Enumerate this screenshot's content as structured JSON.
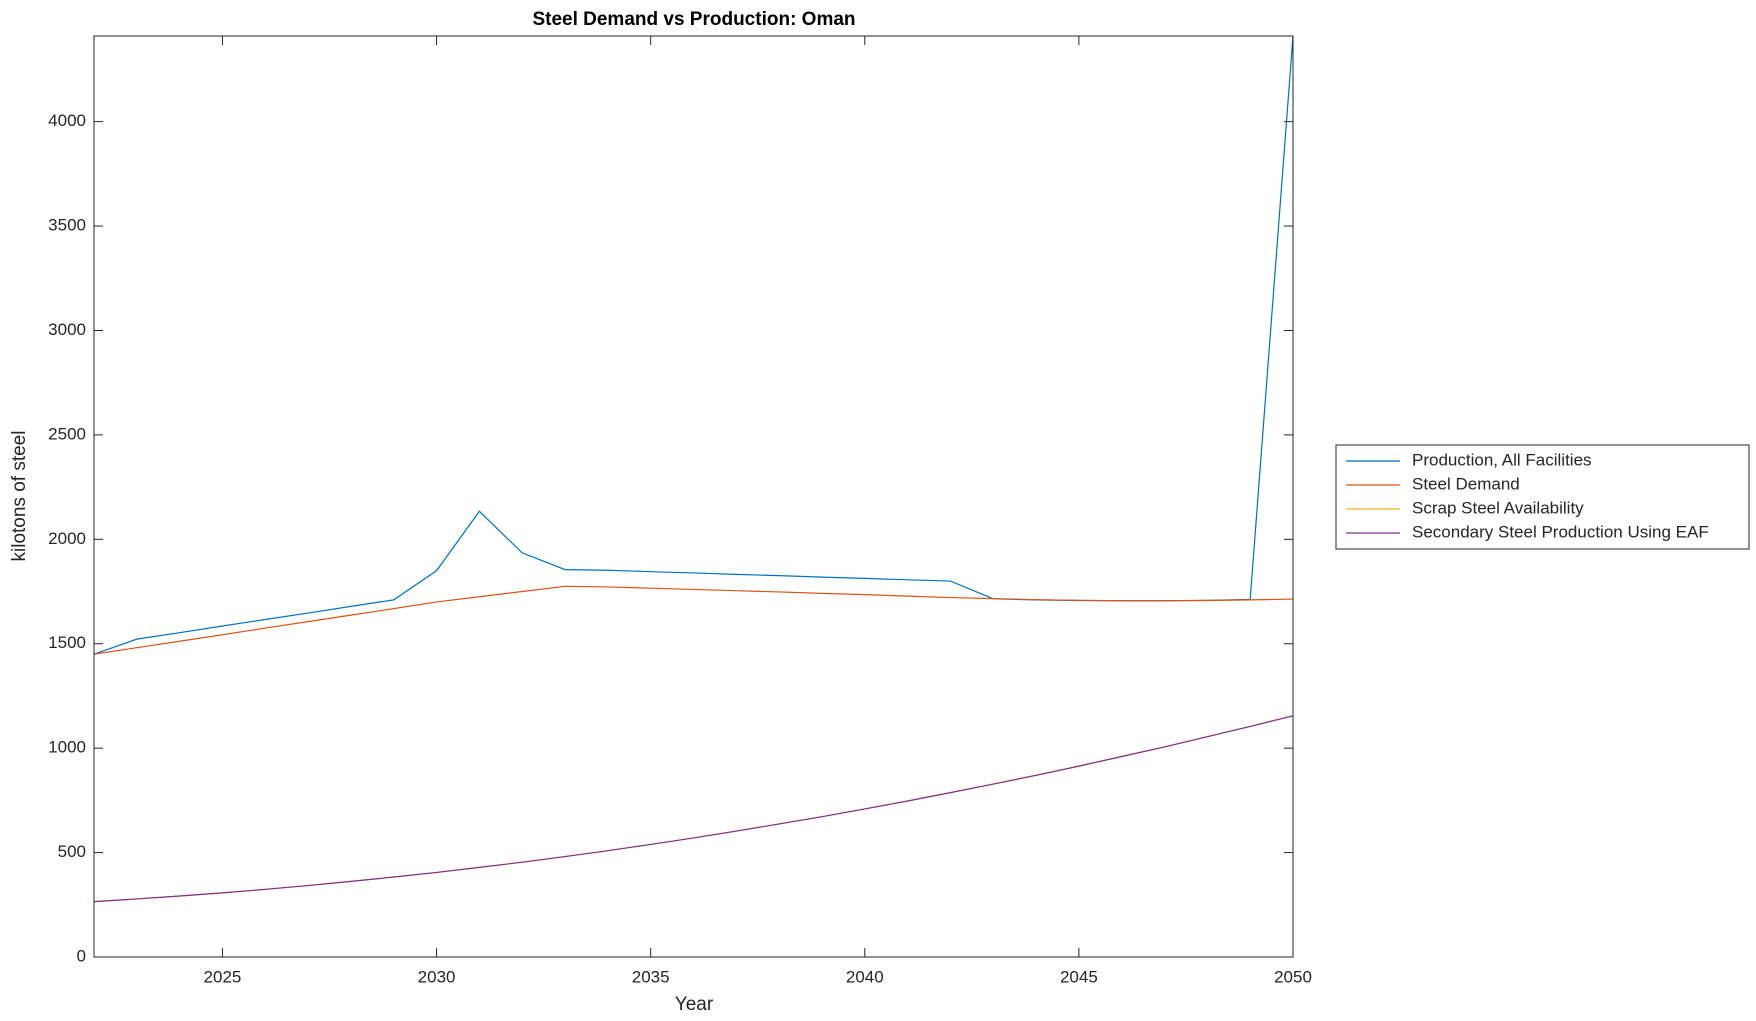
{
  "chart_data": {
    "type": "line",
    "title": "Steel Demand vs Production: Oman",
    "x_label": "Year",
    "y_label": "kilotons of steel",
    "x": [
      2022,
      2023,
      2024,
      2025,
      2026,
      2027,
      2028,
      2029,
      2030,
      2031,
      2032,
      2033,
      2034,
      2035,
      2036,
      2037,
      2038,
      2039,
      2040,
      2041,
      2042,
      2043,
      2044,
      2045,
      2046,
      2047,
      2048,
      2049,
      2050
    ],
    "series": [
      {
        "name": "Production, All Facilities",
        "color": "#0072BD",
        "values": [
          1450,
          1522,
          1553,
          1585,
          1616,
          1647,
          1679,
          1710,
          1850,
          2134,
          1935,
          1855,
          1852,
          1845,
          1839,
          1832,
          1826,
          1819,
          1813,
          1806,
          1800,
          1715,
          1710,
          1707,
          1706,
          1706,
          1708,
          1712,
          4410
        ]
      },
      {
        "name": "Steel Demand",
        "color": "#D95319",
        "values": [
          1450,
          1481,
          1512,
          1543,
          1575,
          1606,
          1637,
          1668,
          1700,
          1725,
          1750,
          1775,
          1772,
          1766,
          1760,
          1754,
          1748,
          1741,
          1735,
          1728,
          1721,
          1716,
          1711,
          1708,
          1706,
          1706,
          1707,
          1710,
          1714
        ]
      },
      {
        "name": "Scrap Steel Availability",
        "color": "#EDB120",
        "values": [
          265,
          278,
          292,
          307,
          324,
          342,
          362,
          383,
          405,
          429,
          454,
          481,
          509,
          539,
          570,
          603,
          637,
          672,
          709,
          747,
          787,
          828,
          870,
          914,
          960,
          1006,
          1055,
          1104,
          1155
        ]
      },
      {
        "name": "Secondary Steel Production Using EAF",
        "color": "#7E2F8E",
        "values": [
          265,
          278,
          292,
          307,
          324,
          342,
          362,
          383,
          405,
          429,
          454,
          481,
          509,
          539,
          570,
          603,
          637,
          672,
          709,
          747,
          787,
          828,
          870,
          914,
          960,
          1006,
          1055,
          1104,
          1155
        ]
      }
    ],
    "xlim": [
      2022,
      2050
    ],
    "xticks": [
      2025,
      2030,
      2035,
      2040,
      2045,
      2050
    ],
    "ylim": [
      0,
      4410
    ],
    "yticks": [
      0,
      500,
      1000,
      1500,
      2000,
      2500,
      3000,
      3500,
      4000
    ],
    "grid": false,
    "legend": "east-outside"
  }
}
